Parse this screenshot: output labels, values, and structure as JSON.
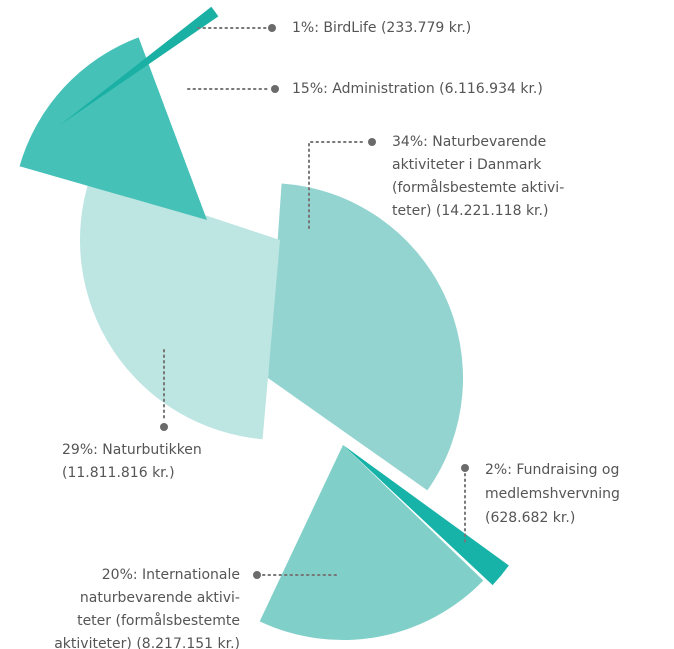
{
  "chart_data": {
    "type": "pie",
    "values": [
      34,
      2,
      20,
      29,
      15,
      1
    ],
    "colors": [
      "#93d4d0",
      "#17b3a8",
      "#80cfc9",
      "#bde5e2",
      "#45c1b8",
      "#1ab0a4"
    ],
    "value_labels": [
      [
        "34%: Naturbevarende",
        "aktiviteter i Danmark",
        "(formålsbestemte aktivi-",
        "teter) (14.221.118 kr.)"
      ],
      [
        "2%: Fundraising og",
        "medlemshvervning",
        "(628.682 kr.)"
      ],
      [
        "20%: Internationale",
        "naturbevarende aktivi-",
        "teter (formålsbestemte",
        "aktiviteter) (8.217.151 kr.)"
      ],
      [
        "29%: Naturbutikken",
        "(11.811.816 kr.)"
      ],
      [
        "15%: Administration (6.116.934 kr.)"
      ],
      [
        "1%: BirdLife (233.779 kr.)"
      ]
    ]
  }
}
